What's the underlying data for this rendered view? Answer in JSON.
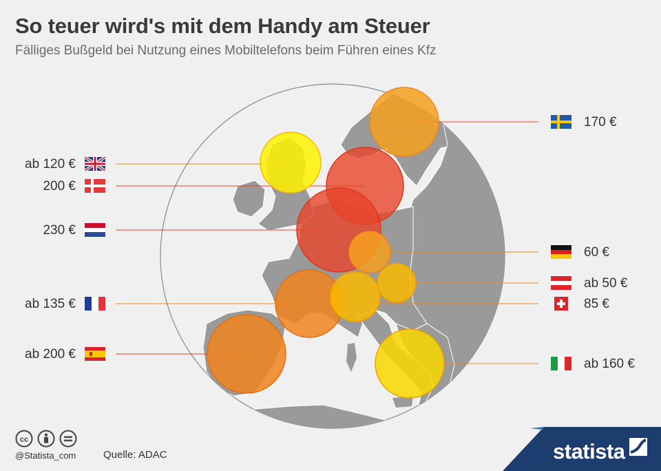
{
  "title": "So teuer wird's mit dem Handy am Steuer",
  "subtitle": "Fälliges Bußgeld bei Nutzung eines Mobiltelefons beim Führen eines Kfz",
  "colors": {
    "background": "#f0f0f0",
    "land": "#9a9a9a",
    "border_line": "#ffffff",
    "high_fine": "#e8452a",
    "mid_fine": "#f0851e",
    "low_fine": "#f9b800",
    "lowest_fine": "#fff200",
    "brand": "#1d3d6e"
  },
  "fines": {
    "sweden": {
      "label": "170 €",
      "flag": "sweden-flag"
    },
    "uk": {
      "label": "ab 120 €",
      "flag": "uk-flag"
    },
    "denmark": {
      "label": "200 €",
      "flag": "denmark-flag"
    },
    "netherlands": {
      "label": "230 €",
      "flag": "netherlands-flag"
    },
    "germany": {
      "label": "60 €",
      "flag": "germany-flag"
    },
    "austria": {
      "label": "ab 50 €",
      "flag": "austria-flag"
    },
    "switzerland": {
      "label": "85 €",
      "flag": "switzerland-flag"
    },
    "france": {
      "label": "ab 135 €",
      "flag": "france-flag"
    },
    "spain": {
      "label": "ab 200 €",
      "flag": "spain-flag"
    },
    "italy": {
      "label": "ab 160 €",
      "flag": "italy-flag"
    }
  },
  "footer": {
    "handle": "@Statista_com",
    "source": "Quelle: ADAC",
    "brand": "statista",
    "license_icons": [
      "cc-icon",
      "by-icon",
      "nd-icon"
    ]
  }
}
